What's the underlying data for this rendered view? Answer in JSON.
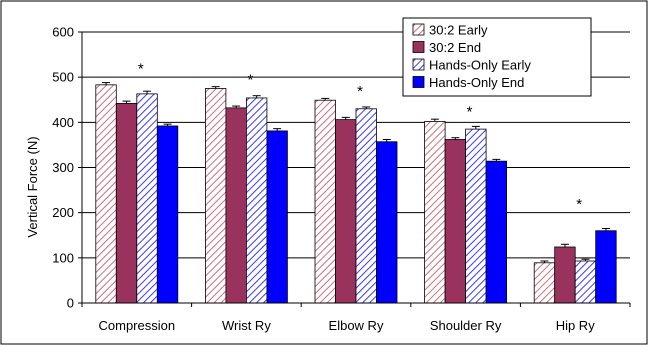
{
  "chart_data": {
    "type": "bar",
    "ylabel": "Vertical Force (N)",
    "ylim": [
      0,
      600
    ],
    "yticks": [
      0,
      100,
      200,
      300,
      400,
      500,
      600
    ],
    "grid": true,
    "legend_position": "top-right",
    "categories": [
      "Compression",
      "Wrist Ry",
      "Elbow Ry",
      "Shoulder Ry",
      "Hip Ry"
    ],
    "series": [
      {
        "name": "30:2 Early",
        "pattern": "diagonal-hatch",
        "color": "#c87080",
        "values": [
          483,
          475,
          449,
          402,
          89
        ],
        "errors": [
          5,
          4,
          4,
          5,
          4
        ]
      },
      {
        "name": "30:2 End",
        "pattern": "solid",
        "color": "#99335e",
        "values": [
          442,
          432,
          406,
          362,
          124
        ],
        "errors": [
          5,
          4,
          5,
          4,
          6
        ]
      },
      {
        "name": "Hands-Only Early",
        "pattern": "diagonal-hatch",
        "color": "#3a3aff",
        "values": [
          463,
          454,
          430,
          385,
          93
        ],
        "errors": [
          6,
          5,
          4,
          6,
          4
        ]
      },
      {
        "name": "Hands-Only End",
        "pattern": "solid",
        "color": "#0000ff",
        "values": [
          392,
          381,
          357,
          314,
          160
        ],
        "errors": [
          4,
          5,
          5,
          4,
          5
        ]
      }
    ],
    "annotations": [
      {
        "text": "*",
        "category": "Compression",
        "y": 515,
        "line": true
      },
      {
        "text": "*",
        "category": "Wrist Ry",
        "y": 490,
        "line": true
      },
      {
        "text": "*",
        "category": "Elbow Ry",
        "y": 465,
        "line": true
      },
      {
        "text": "*",
        "category": "Shoulder Ry",
        "y": 420,
        "line": true
      },
      {
        "text": "*",
        "category": "Hip Ry",
        "y": 215,
        "line": true
      }
    ]
  }
}
